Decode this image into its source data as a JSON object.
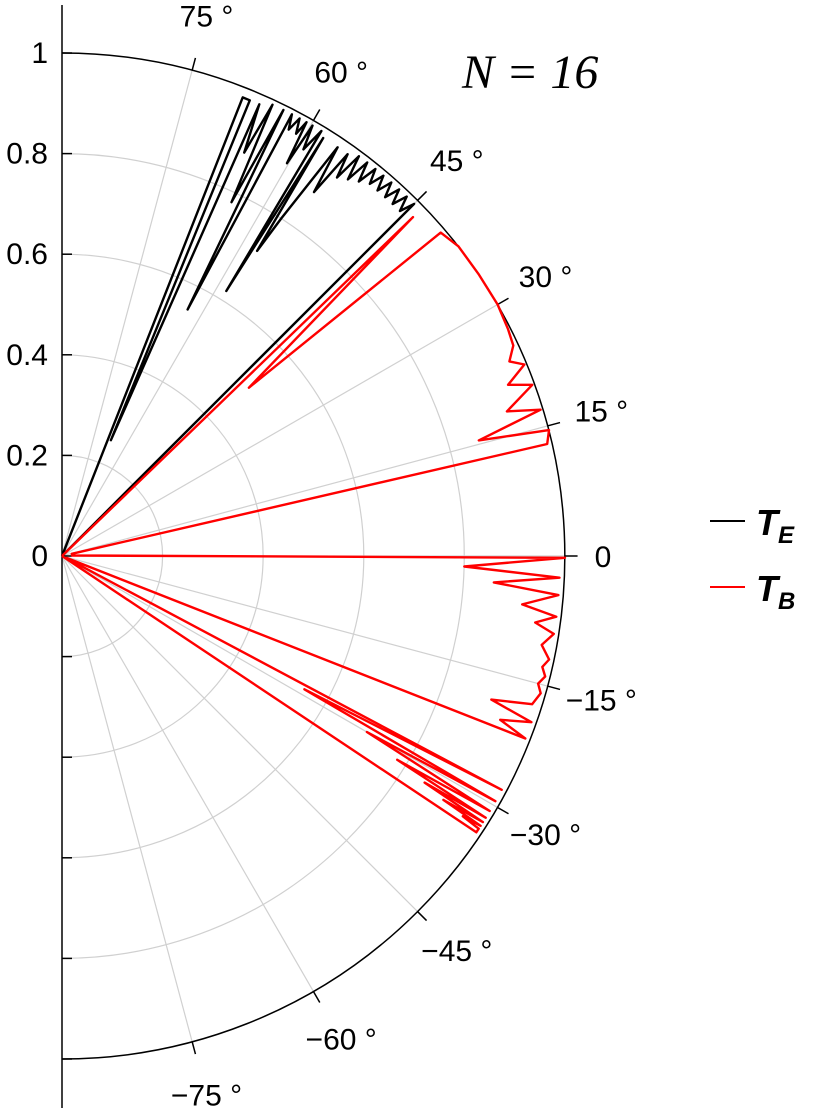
{
  "chart_data": {
    "type": "polar-line",
    "title": "N = 16",
    "r_range": [
      0,
      1
    ],
    "theta_range_deg": [
      -90,
      90
    ],
    "grid": true,
    "radial_tick_labels": [
      "0",
      "0.2",
      "0.4",
      "0.6",
      "0.8",
      "1"
    ],
    "radial_ticks": [
      0,
      0.2,
      0.4,
      0.6,
      0.8,
      1
    ],
    "angle_ticks": [
      75,
      60,
      45,
      30,
      15,
      0,
      -15,
      -30,
      -45,
      -60,
      -75
    ],
    "angle_tick_labels": [
      "75 °",
      "60 °",
      "45 °",
      "30 °",
      "15 °",
      "0",
      "−15 °",
      "−30 °",
      "−45 °",
      "−60 °",
      "−75 °"
    ],
    "legend_position": "right",
    "series": [
      {
        "name": "T",
        "subscript": "E",
        "color": "#000000",
        "points_deg_r": [
          [
            45.0,
            0.99
          ],
          [
            45.6,
            0.96
          ],
          [
            46.2,
            0.99
          ],
          [
            46.8,
            0.96
          ],
          [
            47.4,
            0.99
          ],
          [
            48.0,
            0.96
          ],
          [
            48.6,
            0.99
          ],
          [
            49.2,
            0.96
          ],
          [
            49.8,
            0.99
          ],
          [
            50.4,
            0.96
          ],
          [
            51.0,
            0.99
          ],
          [
            51.6,
            0.95
          ],
          [
            52.2,
            0.99
          ],
          [
            52.8,
            0.94
          ],
          [
            53.4,
            0.99
          ],
          [
            54.0,
            0.93
          ],
          [
            54.6,
            0.98
          ],
          [
            55.3,
            0.88
          ],
          [
            56.0,
            0.98
          ],
          [
            57.0,
            0.8
          ],
          [
            57.4,
            0.72
          ],
          [
            58.0,
            0.98
          ],
          [
            58.2,
            0.62
          ],
          [
            58.6,
            0.99
          ],
          [
            59.3,
            0.94
          ],
          [
            59.8,
            0.99
          ],
          [
            60.2,
            0.9
          ],
          [
            60.6,
            0.99
          ],
          [
            61.0,
            0.96
          ],
          [
            61.5,
            0.99
          ],
          [
            62.0,
            0.96
          ],
          [
            62.5,
            0.99
          ],
          [
            63.0,
            0.55
          ],
          [
            63.6,
            0.99
          ],
          [
            64.4,
            0.78
          ],
          [
            65.0,
            0.99
          ],
          [
            65.7,
            0.88
          ],
          [
            66.4,
            0.98
          ],
          [
            67.1,
            0.25
          ],
          [
            67.6,
            0.98
          ],
          [
            68.5,
            0.98
          ]
        ]
      },
      {
        "name": "T",
        "subscript": "B",
        "color": "#ff0000",
        "points_deg_r": [
          [
            44.0,
            0.97
          ],
          [
            42.0,
            0.5
          ],
          [
            40.5,
            0.99
          ],
          [
            38.0,
            1.0
          ],
          [
            34.0,
            1.0
          ],
          [
            30.0,
            1.0
          ],
          [
            27.0,
            0.995
          ],
          [
            25.0,
            0.99
          ],
          [
            23.5,
            0.97
          ],
          [
            22.5,
            0.995
          ],
          [
            21.0,
            0.95
          ],
          [
            20.0,
            0.995
          ],
          [
            18.0,
            0.93
          ],
          [
            17.0,
            0.995
          ],
          [
            15.5,
            0.86
          ],
          [
            14.5,
            1.0
          ],
          [
            13.0,
            0.99
          ],
          [
            12.5,
            0.02
          ],
          [
            3.0,
            0.02
          ],
          [
            -0.2,
            1.0
          ],
          [
            -1.5,
            0.8
          ],
          [
            -2.5,
            0.99
          ],
          [
            -3.5,
            0.86
          ],
          [
            -4.5,
            0.99
          ],
          [
            -6.0,
            0.92
          ],
          [
            -7.0,
            0.99
          ],
          [
            -8.0,
            0.95
          ],
          [
            -9.0,
            0.99
          ],
          [
            -10.5,
            0.97
          ],
          [
            -12.0,
            0.99
          ],
          [
            -13.0,
            0.98
          ],
          [
            -14.0,
            0.99
          ],
          [
            -15.0,
            0.98
          ],
          [
            -16.0,
            0.99
          ],
          [
            -17.5,
            0.98
          ],
          [
            -18.5,
            0.9
          ],
          [
            -19.5,
            0.99
          ],
          [
            -20.5,
            0.93
          ],
          [
            -21.5,
            0.99
          ],
          [
            -22.5,
            0.01
          ],
          [
            -24.0,
            0.02
          ],
          [
            -26.5,
            0.01
          ],
          [
            -28.0,
            0.99
          ],
          [
            -28.8,
            0.55
          ],
          [
            -29.5,
            0.99
          ],
          [
            -30.0,
            0.7
          ],
          [
            -30.8,
            0.99
          ],
          [
            -31.3,
            0.78
          ],
          [
            -31.7,
            0.99
          ],
          [
            -32.0,
            0.85
          ],
          [
            -32.3,
            0.99
          ],
          [
            -32.6,
            0.9
          ],
          [
            -32.8,
            0.99
          ],
          [
            -33.0,
            0.95
          ],
          [
            -33.2,
            0.99
          ],
          [
            -33.7,
            0.99
          ],
          [
            -34.0,
            0.01
          ]
        ]
      }
    ]
  }
}
